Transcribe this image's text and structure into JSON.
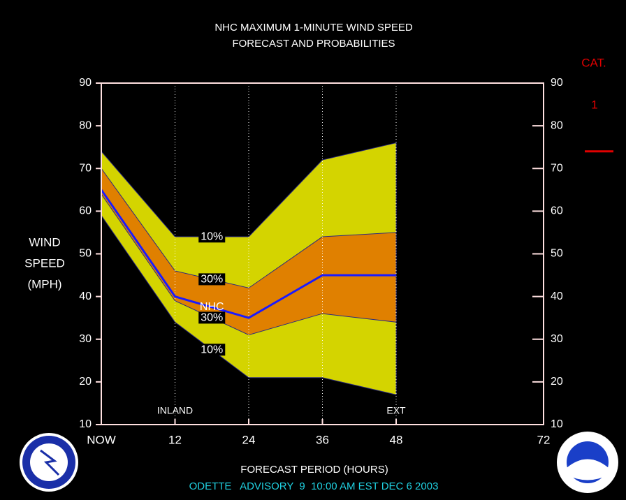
{
  "chart_data": {
    "type": "probability-bands",
    "title": "NHC MAXIMUM 1-MINUTE WIND SPEED",
    "subtitle": "FORECAST AND PROBABILITIES",
    "ylabel": [
      "WIND",
      "SPEED",
      "(MPH)"
    ],
    "xlabel": "FORECAST PERIOD (HOURS)",
    "footer": "ODETTE   ADVISORY  9  10:00 AM EST DEC 6 2003",
    "x": [
      0,
      12,
      24,
      36,
      48
    ],
    "xlim": [
      0,
      72
    ],
    "xticks": [
      {
        "value": 0,
        "label": "NOW"
      },
      12,
      24,
      36,
      48,
      72
    ],
    "ylim": [
      10,
      90
    ],
    "yticks": [
      10,
      20,
      30,
      40,
      50,
      60,
      70,
      80,
      90
    ],
    "y2lim": [
      10,
      90
    ],
    "y2ticks": [
      10,
      20,
      30,
      40,
      50,
      60,
      70,
      80,
      90
    ],
    "markers": [
      {
        "x": 12,
        "label": "INLAND"
      },
      {
        "x": 24
      },
      {
        "x": 36
      },
      {
        "x": 48,
        "label": "EXT"
      }
    ],
    "bands": [
      {
        "upper_label": "10%",
        "lower_label": "10%",
        "color": "#d4d400",
        "upper": [
          74,
          54,
          54,
          72,
          76
        ],
        "lower": [
          59,
          34,
          21,
          21,
          17
        ]
      },
      {
        "upper_label": "30%",
        "lower_label": "30%",
        "color": "#e08000",
        "upper": [
          70,
          46,
          42,
          54,
          55
        ],
        "lower": [
          64,
          39,
          31,
          36,
          34
        ]
      }
    ],
    "series": [
      {
        "name": "NHC",
        "color": "#1a1aff",
        "values": [
          65,
          40,
          35,
          45,
          45
        ]
      }
    ],
    "category_label": "CAT.",
    "category": 1,
    "category_threshold": 74,
    "category_color": "#e00000"
  }
}
